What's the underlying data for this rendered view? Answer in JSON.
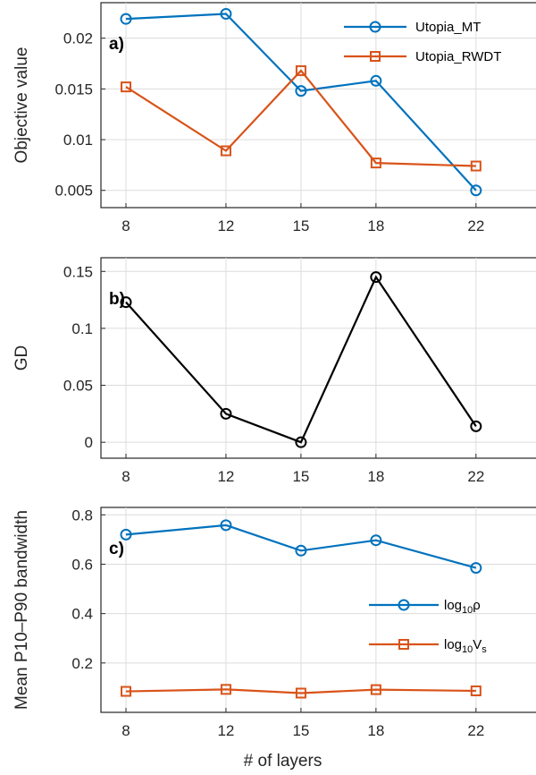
{
  "chart_data": [
    {
      "type": "line",
      "panel_label": "a)",
      "xlabel": "",
      "ylabel": "Objective value",
      "x": [
        8,
        12,
        15,
        18,
        22
      ],
      "xticks": [
        "8",
        "12",
        "15",
        "18",
        "22"
      ],
      "ylim": [
        0.0033,
        0.0235
      ],
      "yticks": [
        0.005,
        0.01,
        0.015,
        0.02
      ],
      "ytick_labels": [
        "0.005",
        "0.01",
        "0.015",
        "0.02"
      ],
      "grid": true,
      "legend_position": "top-right",
      "series": [
        {
          "name": "Utopia_MT",
          "marker": "circle",
          "color": "#0072BD",
          "values": [
            0.0219,
            0.0224,
            0.0148,
            0.0158,
            0.005
          ]
        },
        {
          "name": "Utopia_RWDT",
          "marker": "square",
          "color": "#D95319",
          "values": [
            0.0152,
            0.0089,
            0.0168,
            0.0077,
            0.0074
          ]
        }
      ]
    },
    {
      "type": "line",
      "panel_label": "b)",
      "xlabel": "",
      "ylabel": "GD",
      "x": [
        8,
        12,
        15,
        18,
        22
      ],
      "xticks": [
        "8",
        "12",
        "15",
        "18",
        "22"
      ],
      "ylim": [
        -0.014,
        0.162
      ],
      "yticks": [
        0,
        0.05,
        0.1,
        0.15
      ],
      "ytick_labels": [
        "0",
        "0.05",
        "0.1",
        "0.15"
      ],
      "grid": true,
      "series": [
        {
          "marker": "circle",
          "color": "#000000",
          "values": [
            0.123,
            0.025,
            0.0,
            0.145,
            0.014
          ]
        }
      ]
    },
    {
      "type": "line",
      "panel_label": "c)",
      "xlabel": "# of layers",
      "ylabel": "Mean P10–P90 bandwidth",
      "x": [
        8,
        12,
        15,
        18,
        22
      ],
      "xticks": [
        "8",
        "12",
        "15",
        "18",
        "22"
      ],
      "ylim": [
        0.0,
        0.83
      ],
      "yticks": [
        0.2,
        0.4,
        0.6,
        0.8
      ],
      "ytick_labels": [
        "0.2",
        "0.4",
        "0.6",
        "0.8"
      ],
      "grid": true,
      "legend_position": "center-right",
      "series": [
        {
          "name_base": "log",
          "name_sub": "10",
          "name_var": "ρ",
          "name_var_sub": "",
          "marker": "circle",
          "color": "#0072BD",
          "values": [
            0.72,
            0.758,
            0.655,
            0.697,
            0.585
          ]
        },
        {
          "name_base": "log",
          "name_sub": "10",
          "name_var": "V",
          "name_var_sub": "s",
          "marker": "square",
          "color": "#D95319",
          "values": [
            0.085,
            0.093,
            0.078,
            0.092,
            0.087
          ]
        }
      ]
    }
  ]
}
